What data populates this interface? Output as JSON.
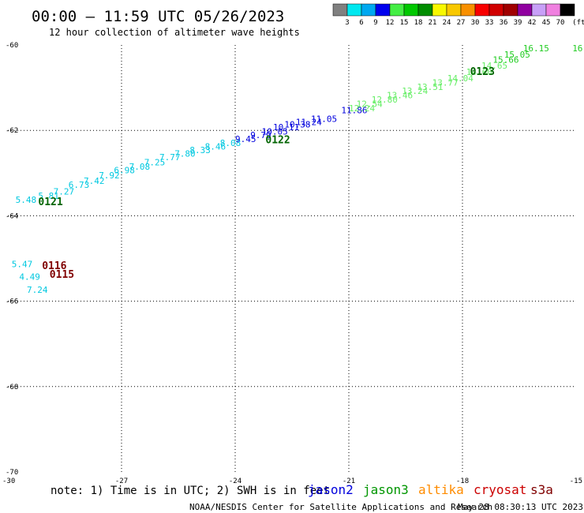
{
  "header": {
    "title": "00:00 – 11:59 UTC 05/26/2023",
    "subtitle": "12 hour collection of altimeter wave heights"
  },
  "colorbar": {
    "labels": [
      "3",
      "6",
      "9",
      "12",
      "15",
      "18",
      "21",
      "24",
      "27",
      "30",
      "33",
      "36",
      "39",
      "42",
      "45",
      "70"
    ],
    "unit": "(ft)",
    "colors": [
      "#808080",
      "#00e8f0",
      "#00a8f0",
      "#0000ee",
      "#44ee44",
      "#00c800",
      "#008c00",
      "#f8f800",
      "#f8c800",
      "#f89000",
      "#f80000",
      "#d00000",
      "#a00000",
      "#9000a0",
      "#c8a0f8",
      "#f080e0",
      "#000000"
    ]
  },
  "footer": {
    "note": "note: 1) Time is in UTC; 2) SWH is in feet",
    "credit": "NOAA/NESDIS Center for Satellite Applications and Research",
    "timestamp": "May 28 08:30:13 UTC 2023",
    "satellites": [
      {
        "name": "jason2",
        "color": "#0000dd"
      },
      {
        "name": "jason3",
        "color": "#009600"
      },
      {
        "name": "altika",
        "color": "#ff8c00"
      },
      {
        "name": "cryosat",
        "color": "#cc0000"
      },
      {
        "name": "s3a",
        "color": "#800000"
      }
    ]
  },
  "chart_data": {
    "type": "scatter",
    "xlim": [
      -30,
      -15
    ],
    "ylim": [
      -70,
      -60
    ],
    "x_ticks": [
      "-30",
      "-27",
      "-24",
      "-21",
      "-18",
      "-15"
    ],
    "y_ticks": [
      "-60",
      "-62",
      "-64",
      "-66",
      "-68",
      "-70"
    ],
    "grid": true,
    "labels": [
      {
        "text": "5.48",
        "x": -29.8,
        "y": -63.7,
        "color": "#00c8e0"
      },
      {
        "text": "5.81",
        "x": -29.2,
        "y": -63.6,
        "color": "#00c8e0"
      },
      {
        "text": "7.27",
        "x": -28.8,
        "y": -63.5,
        "color": "#00c8e0"
      },
      {
        "text": "6.73",
        "x": -28.4,
        "y": -63.35,
        "color": "#00c8e0"
      },
      {
        "text": "7.42",
        "x": -28.0,
        "y": -63.25,
        "color": "#00c8e0"
      },
      {
        "text": "7.92",
        "x": -27.6,
        "y": -63.12,
        "color": "#00c8e0"
      },
      {
        "text": "6.98",
        "x": -27.2,
        "y": -63.0,
        "color": "#00c8e0"
      },
      {
        "text": "7.08",
        "x": -26.8,
        "y": -62.92,
        "color": "#00c8e0"
      },
      {
        "text": "7.25",
        "x": -26.4,
        "y": -62.82,
        "color": "#00c8e0"
      },
      {
        "text": "7.77",
        "x": -26.0,
        "y": -62.7,
        "color": "#00c8e0"
      },
      {
        "text": "7.80",
        "x": -25.6,
        "y": -62.62,
        "color": "#00c8e0"
      },
      {
        "text": "8.33",
        "x": -25.2,
        "y": -62.53,
        "color": "#00c8e0"
      },
      {
        "text": "8.46",
        "x": -24.8,
        "y": -62.45,
        "color": "#00c8e0"
      },
      {
        "text": "8.08",
        "x": -24.4,
        "y": -62.37,
        "color": "#00c8e0"
      },
      {
        "text": "9.45",
        "x": -24.0,
        "y": -62.27,
        "color": "#0000dd"
      },
      {
        "text": "9.79",
        "x": -23.6,
        "y": -62.18,
        "color": "#0000dd"
      },
      {
        "text": "10.05",
        "x": -23.3,
        "y": -62.1,
        "color": "#0000dd"
      },
      {
        "text": "10.11",
        "x": -23.0,
        "y": -62.0,
        "color": "#0000dd"
      },
      {
        "text": "10.38",
        "x": -22.7,
        "y": -61.93,
        "color": "#0000dd"
      },
      {
        "text": "11.24",
        "x": -22.4,
        "y": -61.88,
        "color": "#0000dd"
      },
      {
        "text": "11.05",
        "x": -22.0,
        "y": -61.8,
        "color": "#0000dd"
      },
      {
        "text": "11.86",
        "x": -21.2,
        "y": -61.6,
        "color": "#0000dd"
      },
      {
        "text": "12.24",
        "x": -21.0,
        "y": -61.55,
        "color": "#66ee66"
      },
      {
        "text": "12.54",
        "x": -20.8,
        "y": -61.45,
        "color": "#66ee66"
      },
      {
        "text": "12.80",
        "x": -20.4,
        "y": -61.35,
        "color": "#66ee66"
      },
      {
        "text": "13.46",
        "x": -20.0,
        "y": -61.25,
        "color": "#66ee66"
      },
      {
        "text": "13.24",
        "x": -19.6,
        "y": -61.15,
        "color": "#66ee66"
      },
      {
        "text": "13.51",
        "x": -19.2,
        "y": -61.05,
        "color": "#66ee66"
      },
      {
        "text": "13.77",
        "x": -18.8,
        "y": -60.95,
        "color": "#66ee66"
      },
      {
        "text": "14.04",
        "x": -18.4,
        "y": -60.85,
        "color": "#66ee66"
      },
      {
        "text": "14.60",
        "x": -17.9,
        "y": -60.7,
        "color": "#66ee66"
      },
      {
        "text": "14.65",
        "x": -17.5,
        "y": -60.55,
        "color": "#66ee66"
      },
      {
        "text": "15.66",
        "x": -17.2,
        "y": -60.42,
        "color": "#22cc22"
      },
      {
        "text": "15.05",
        "x": -16.9,
        "y": -60.3,
        "color": "#22cc22"
      },
      {
        "text": "16.15",
        "x": -16.4,
        "y": -60.15,
        "color": "#22cc22"
      },
      {
        "text": "16",
        "x": -15.1,
        "y": -60.15,
        "color": "#22cc22"
      },
      {
        "text": "5.47",
        "x": -29.9,
        "y": -65.2,
        "color": "#00c8e0"
      },
      {
        "text": "4.49",
        "x": -29.7,
        "y": -65.5,
        "color": "#00c8e0"
      },
      {
        "text": "7.24",
        "x": -29.5,
        "y": -65.8,
        "color": "#00c8e0"
      }
    ],
    "passes": [
      {
        "text": "0121",
        "x": -29.2,
        "y": -63.75,
        "color": "#006400"
      },
      {
        "text": "0122",
        "x": -23.2,
        "y": -62.3,
        "color": "#006400"
      },
      {
        "text": "0123",
        "x": -17.8,
        "y": -60.7,
        "color": "#006400"
      },
      {
        "text": "0116",
        "x": -29.1,
        "y": -65.25,
        "color": "#800000"
      },
      {
        "text": "0115",
        "x": -28.9,
        "y": -65.45,
        "color": "#800000"
      }
    ]
  }
}
